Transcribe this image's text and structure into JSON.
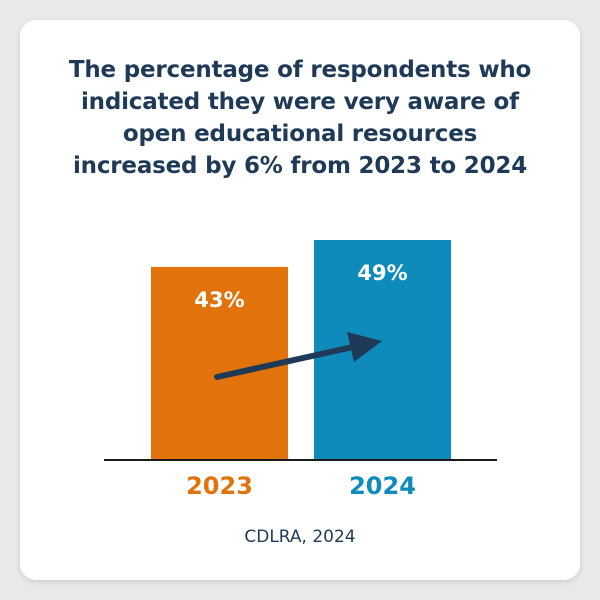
{
  "title_lines": [
    "The percentage of respondents who",
    "indicated they were very aware of",
    "open educational resources",
    "increased by 6% from 2023 to 2024"
  ],
  "source": "CDLRA, 2024",
  "colors": {
    "bar_2023": "#e2730b",
    "bar_2024": "#0e8abb",
    "title": "#1f3a56",
    "arrow": "#1f3a56",
    "baseline": "#1a1a1a"
  },
  "chart_data": {
    "type": "bar",
    "title": "The percentage of respondents who indicated they were very aware of open educational resources increased by 6% from 2023 to 2024",
    "categories": [
      "2023",
      "2024"
    ],
    "values": [
      43,
      49
    ],
    "value_labels": [
      "43%",
      "49%"
    ],
    "ylim": [
      0,
      49
    ],
    "xlabel": "",
    "ylabel": "",
    "grid": false,
    "annotations": [
      "upward arrow from 2023 bar to 2024 bar"
    ]
  }
}
